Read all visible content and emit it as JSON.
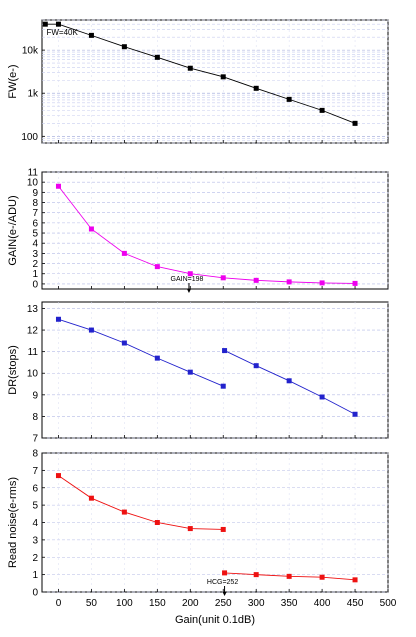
{
  "chart_data": [
    {
      "type": "line",
      "ylabel": "FW(e-)",
      "yscale": "log",
      "ylim": [
        70,
        50000
      ],
      "yticks": [
        100,
        1000,
        10000
      ],
      "ytick_labels": [
        "100",
        "1k",
        "10k"
      ],
      "xlim": [
        -25,
        500
      ],
      "grid": true,
      "color": "#000000",
      "series": [
        {
          "x": [
            -20,
            0,
            50,
            100,
            150,
            200,
            250,
            300,
            350,
            400,
            450
          ],
          "y": [
            40000,
            40000,
            22000,
            12000,
            6800,
            3800,
            2400,
            1300,
            720,
            400,
            200
          ]
        }
      ],
      "annotations": [
        {
          "text": "FW=40K",
          "x": 0,
          "y": 40000
        }
      ]
    },
    {
      "type": "line",
      "ylabel": "GAIN(e-/ADU)",
      "ylim": [
        -0.5,
        11
      ],
      "yticks": [
        0,
        1,
        2,
        3,
        4,
        5,
        6,
        7,
        8,
        9,
        10,
        11
      ],
      "xlim": [
        -25,
        500
      ],
      "grid": true,
      "color": "#ee00ee",
      "series": [
        {
          "x": [
            0,
            50,
            100,
            150,
            200,
            250,
            300,
            350,
            400,
            450
          ],
          "y": [
            9.6,
            5.4,
            3.0,
            1.7,
            1.0,
            0.6,
            0.35,
            0.2,
            0.1,
            0.05
          ]
        }
      ],
      "annotations": [
        {
          "text": "GAIN=198",
          "x": 198,
          "y": 0
        }
      ]
    },
    {
      "type": "line",
      "ylabel": "DR(stops)",
      "ylim": [
        7,
        13.3
      ],
      "yticks": [
        7,
        8,
        9,
        10,
        11,
        12,
        13
      ],
      "xlim": [
        -25,
        500
      ],
      "grid": true,
      "color": "#2222cc",
      "series": [
        {
          "x": [
            0,
            50,
            100,
            150,
            200,
            250
          ],
          "y": [
            12.5,
            12.0,
            11.4,
            10.7,
            10.05,
            9.4
          ]
        },
        {
          "x": [
            252,
            300,
            350,
            400,
            450
          ],
          "y": [
            11.05,
            10.35,
            9.65,
            8.9,
            8.1
          ]
        }
      ]
    },
    {
      "type": "line",
      "ylabel": "Read noise(e-rms)",
      "xlabel": "Gain(unit 0.1dB)",
      "ylim": [
        0,
        8
      ],
      "yticks": [
        0,
        1,
        2,
        3,
        4,
        5,
        6,
        7,
        8
      ],
      "xlim": [
        -25,
        500
      ],
      "xticks": [
        0,
        50,
        100,
        150,
        200,
        250,
        300,
        350,
        400,
        450,
        500
      ],
      "grid": true,
      "color": "#ee1111",
      "series": [
        {
          "x": [
            0,
            50,
            100,
            150,
            200,
            250
          ],
          "y": [
            6.7,
            5.4,
            4.6,
            4.0,
            3.65,
            3.6
          ]
        },
        {
          "x": [
            252,
            300,
            350,
            400,
            450
          ],
          "y": [
            1.1,
            1.0,
            0.9,
            0.85,
            0.7
          ]
        }
      ],
      "annotations": [
        {
          "text": "HCG=252",
          "x": 252,
          "y": 0
        }
      ]
    }
  ]
}
